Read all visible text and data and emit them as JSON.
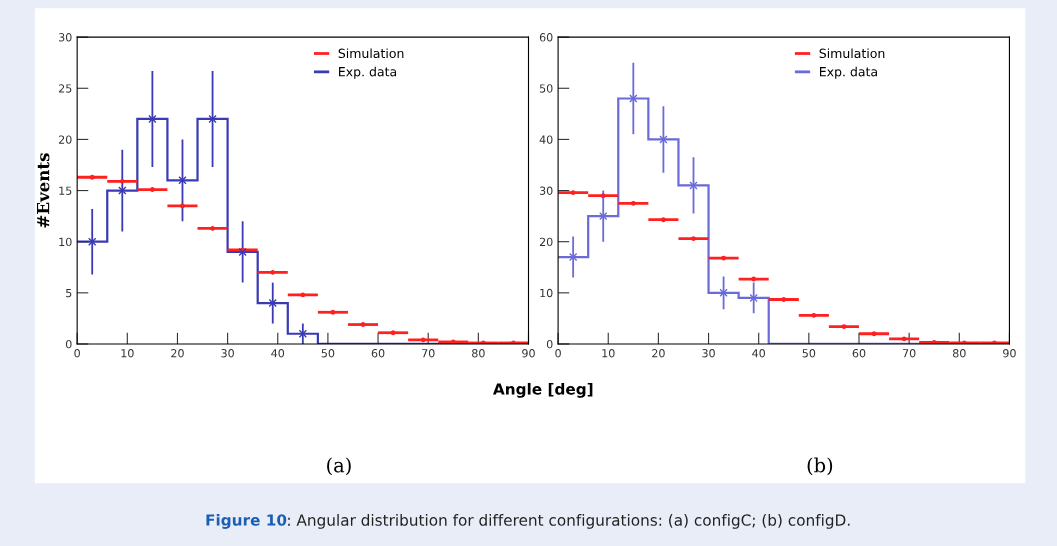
{
  "chart_data": [
    {
      "type": "histogram",
      "ylabel": "#Events",
      "xlabel": "Angle [deg]",
      "subtitle": "(a)",
      "annotations": [
        "Figure 10: Angular distribution for different configurations: (a) configC; (b) configD."
      ],
      "bins": [
        0,
        6,
        12,
        18,
        24,
        30,
        36,
        42,
        48,
        54,
        60,
        66,
        72,
        78,
        84,
        90
      ],
      "series": [
        {
          "name": "Simulation",
          "type": "scatter",
          "marker": "circle",
          "color": "#ff2020",
          "x": [
            3,
            9,
            15,
            21,
            27,
            33,
            39,
            45,
            51,
            57,
            63,
            69,
            75,
            81,
            87
          ],
          "values": [
            16.3,
            15.9,
            15.1,
            13.5,
            11.3,
            9.2,
            7.0,
            4.8,
            3.1,
            1.9,
            1.1,
            0.4,
            0.2,
            0.1,
            0.1
          ],
          "xerrors": [
            3,
            3,
            3,
            3,
            3,
            3,
            3,
            3,
            3,
            3,
            3,
            3,
            3,
            3,
            3
          ]
        },
        {
          "name": "Exp. data",
          "type": "histogram",
          "color": "#3a3ab4",
          "values": [
            10,
            15,
            22,
            16,
            22,
            9,
            4,
            1,
            0,
            0,
            0,
            0,
            0,
            0,
            0
          ]
        },
        {
          "type": "scatter",
          "marker": "cross",
          "color": "#3a3ab4",
          "x": [
            3,
            9,
            15,
            21,
            27,
            33,
            39,
            45
          ],
          "values": [
            10,
            15,
            22,
            16,
            22,
            9,
            4,
            1
          ],
          "errors": [
            3.2,
            4,
            4.7,
            4,
            4.7,
            3,
            2,
            1
          ]
        }
      ],
      "xlim": [
        0,
        90
      ],
      "xticks": [
        0,
        10,
        20,
        30,
        40,
        50,
        60,
        70,
        80,
        90
      ],
      "ylim": [
        0,
        30
      ],
      "yticks": [
        0,
        5,
        10,
        15,
        20,
        25,
        30
      ],
      "legend": "top right",
      "grid": false
    },
    {
      "type": "histogram",
      "subtitle": "(b)",
      "bins": [
        0,
        6,
        12,
        18,
        24,
        30,
        36,
        42,
        48,
        54,
        60,
        66,
        72,
        78,
        84,
        90
      ],
      "series": [
        {
          "name": "Simulation",
          "type": "scatter",
          "marker": "circle",
          "color": "#ff2020",
          "x": [
            3,
            9,
            15,
            21,
            27,
            33,
            39,
            45,
            51,
            57,
            63,
            69,
            75,
            81,
            87
          ],
          "values": [
            29.6,
            29.0,
            27.5,
            24.3,
            20.6,
            16.8,
            12.7,
            8.7,
            5.6,
            3.4,
            2.0,
            1.0,
            0.3,
            0.2,
            0.2
          ],
          "xerrors": [
            3,
            3,
            3,
            3,
            3,
            3,
            3,
            3,
            3,
            3,
            3,
            3,
            3,
            3,
            3
          ]
        },
        {
          "name": "Exp. data",
          "type": "histogram",
          "color": "#6a6ad8",
          "values": [
            17,
            25,
            48,
            40,
            31,
            10,
            9,
            0,
            0,
            0,
            0,
            0,
            0,
            0,
            0
          ]
        },
        {
          "type": "scatter",
          "marker": "cross",
          "color": "#6a6ad8",
          "x": [
            3,
            9,
            15,
            21,
            27,
            33,
            39
          ],
          "values": [
            17,
            25,
            48,
            40,
            31,
            10,
            9
          ],
          "errors": [
            4,
            5,
            7,
            6.5,
            5.5,
            3.2,
            3
          ]
        }
      ],
      "xlim": [
        0,
        90
      ],
      "xticks": [
        0,
        10,
        20,
        30,
        40,
        50,
        60,
        70,
        80,
        90
      ],
      "ylim": [
        0,
        60
      ],
      "yticks": [
        0,
        10,
        20,
        30,
        40,
        50,
        60
      ],
      "legend": "top right",
      "grid": false
    }
  ]
}
